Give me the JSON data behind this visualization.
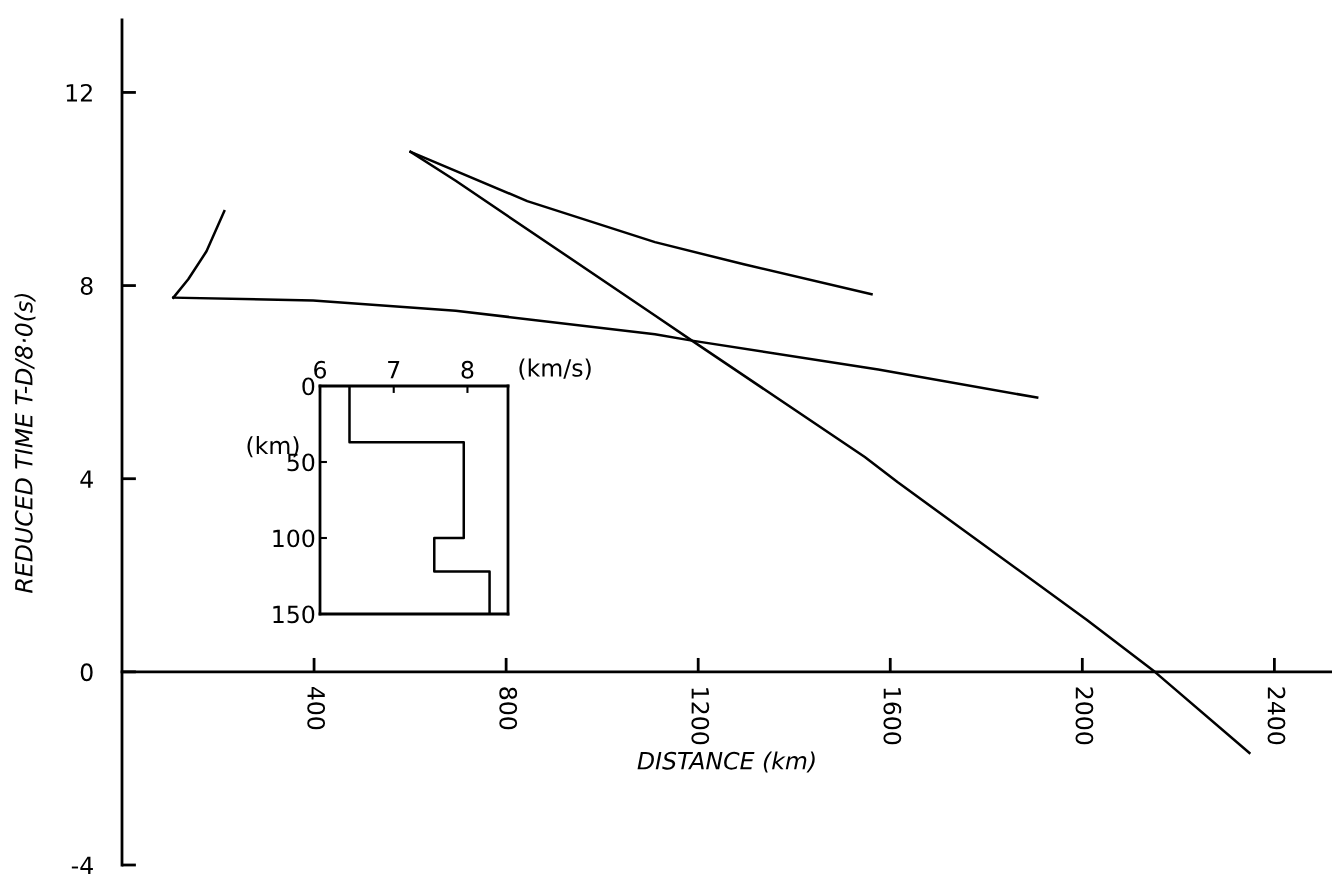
{
  "chart_data": [
    {
      "type": "line",
      "xlabel": "DISTANCE (km)",
      "ylabel": "REDUCED TIME T-D/8·0(s)",
      "xlim": [
        0,
        2520
      ],
      "ylim": [
        -4,
        13.5
      ],
      "xticks": [
        400,
        800,
        1200,
        1600,
        2000,
        2400
      ],
      "yticks": [
        -4,
        0,
        4,
        8,
        12
      ],
      "grid": false,
      "legend": false,
      "series": [
        {
          "color": "#000000",
          "x": [
            107,
            138,
            176,
            213
          ],
          "values": [
            7.75,
            8.13,
            8.71,
            9.54
          ]
        },
        {
          "color": "#000000",
          "x": [
            107,
            398,
            695,
            1110,
            1187,
            1575,
            1906
          ],
          "values": [
            7.75,
            7.69,
            7.48,
            6.99,
            6.86,
            6.26,
            5.68
          ]
        },
        {
          "color": "#000000",
          "x": [
            601,
            844,
            1110,
            1295,
            1561
          ],
          "values": [
            10.77,
            9.75,
            8.9,
            8.44,
            7.82
          ]
        },
        {
          "color": "#000000",
          "x": [
            601,
            695,
            1110,
            1187,
            1547,
            1615,
            2009,
            2151,
            2348
          ],
          "values": [
            10.77,
            10.17,
            7.38,
            6.86,
            4.45,
            3.93,
            1.08,
            0,
            -1.68
          ]
        }
      ]
    },
    {
      "type": "line",
      "xlabel": "(km/s)",
      "ylabel": "(km)",
      "xlim": [
        6,
        8.55
      ],
      "ylim": [
        150,
        0
      ],
      "xticks": [
        6,
        7,
        8
      ],
      "yticks": [
        0,
        50,
        100,
        150
      ],
      "grid": false,
      "legend": false,
      "series": [
        {
          "color": "#000000",
          "x": [
            6.4,
            6.4,
            7.95,
            7.95,
            7.55,
            7.55,
            8.3,
            8.3
          ],
          "values": [
            0,
            37,
            37,
            100,
            100,
            122,
            122,
            150
          ]
        }
      ]
    }
  ]
}
